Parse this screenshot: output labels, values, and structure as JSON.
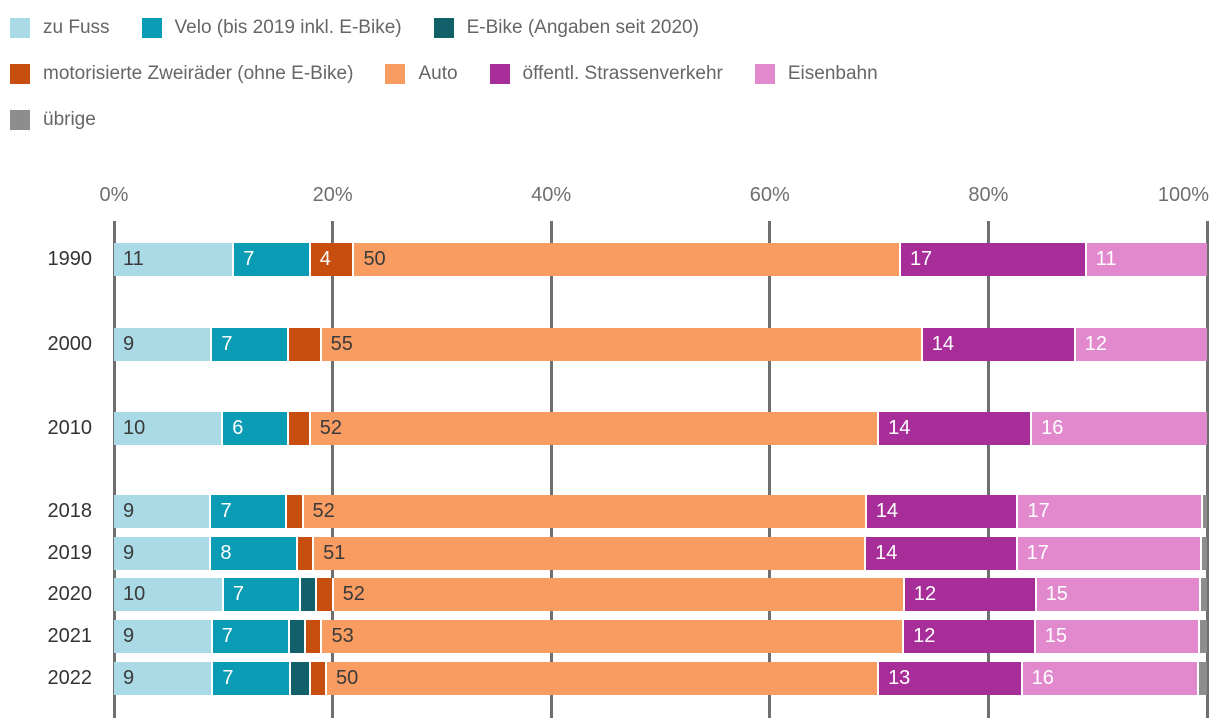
{
  "chart_data": {
    "type": "bar",
    "orientation": "horizontal-stacked",
    "unit": "%",
    "title": "",
    "xlabel": "",
    "ylabel": "",
    "xlim": [
      0,
      100
    ],
    "grid": true,
    "legend_position": "top",
    "x_ticks": [
      "0%",
      "20%",
      "40%",
      "60%",
      "80%",
      "100%"
    ],
    "categories": [
      "1990",
      "2000",
      "2010",
      "2018",
      "2019",
      "2020",
      "2021",
      "2022"
    ],
    "label_min_value_to_show": 4,
    "series": [
      {
        "name": "zu Fuss",
        "color": "#a9dae5",
        "label_color": "#3a3a3a",
        "values": [
          11,
          9,
          10,
          9,
          9,
          10,
          9,
          9
        ]
      },
      {
        "name": "Velo (bis 2019 inkl. E-Bike)",
        "color": "#0a9bb5",
        "label_color": "#ffffff",
        "values": [
          7,
          7,
          6,
          7,
          8,
          7,
          7,
          7
        ]
      },
      {
        "name": "E-Bike (Angaben seit 2020)",
        "color": "#11606a",
        "label_color": "#ffffff",
        "values": [
          0,
          0,
          0,
          0,
          0,
          1.5,
          1.5,
          1.8
        ]
      },
      {
        "name": "motorisierte Zweiräder (ohne E-Bike)",
        "color": "#c74e0e",
        "label_color": "#ffffff",
        "values": [
          4,
          3,
          2,
          1.5,
          1.5,
          1.5,
          1.5,
          1.5
        ]
      },
      {
        "name": "Auto",
        "color": "#f99c61",
        "label_color": "#3a3a3a",
        "values": [
          50,
          55,
          52,
          52,
          51,
          52,
          53,
          50
        ]
      },
      {
        "name": "öffentl. Strassenverkehr",
        "color": "#a72e98",
        "label_color": "#ffffff",
        "values": [
          17,
          14,
          14,
          14,
          14,
          12,
          12,
          13
        ]
      },
      {
        "name": "Eisenbahn",
        "color": "#e289ce",
        "label_color": "#ffffff",
        "values": [
          11,
          12,
          16,
          17,
          17,
          15,
          15,
          16
        ]
      },
      {
        "name": "übrige",
        "color": "#8d8d8d",
        "label_color": "#ffffff",
        "values": [
          0,
          0,
          0,
          0.4,
          0.5,
          0.5,
          0.6,
          0.7
        ]
      }
    ],
    "legend_rows": [
      [
        0,
        1,
        2
      ],
      [
        3,
        4,
        5,
        6
      ],
      [
        7
      ]
    ],
    "colors": {
      "grid": "#6f6f6f",
      "tick_text": "#6f6f6f",
      "category_text": "#333333",
      "legend_text": "#666666",
      "background": "#ffffff"
    }
  }
}
